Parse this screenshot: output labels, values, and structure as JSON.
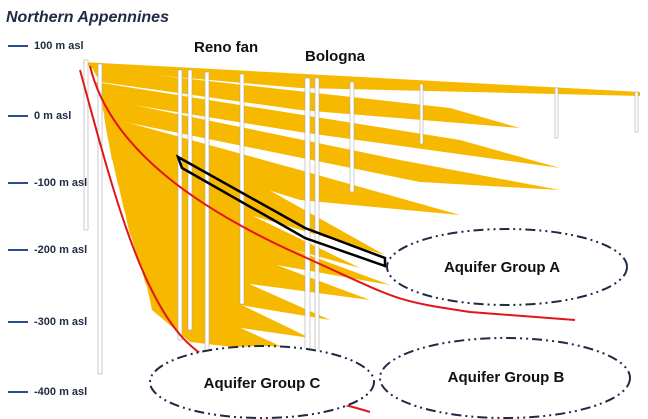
{
  "title": "Northern Appennines",
  "places": [
    "Reno fan",
    "Bologna"
  ],
  "depth_labels": [
    "100 m asl",
    "0 m asl",
    "-100 m asl",
    "-200 m asl",
    "-300 m asl",
    "-400 m asl"
  ],
  "aquifer_groups": [
    "Aquifer Group A",
    "Aquifer Group B",
    "Aquifer Group C"
  ]
}
